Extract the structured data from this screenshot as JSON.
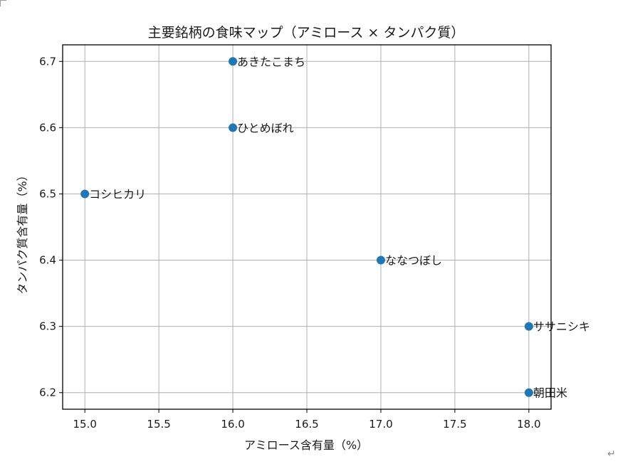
{
  "chart_data": {
    "type": "scatter",
    "title": "主要銘柄の食味マップ（アミロース × タンパク質）",
    "xlabel": "アミロース含有量（%）",
    "ylabel": "タンパク質含有量（%）",
    "xlim": [
      14.85,
      18.15
    ],
    "ylim": [
      6.175,
      6.725
    ],
    "xticks": [
      "15.0",
      "15.5",
      "16.0",
      "16.5",
      "17.0",
      "17.5",
      "18.0"
    ],
    "yticks": [
      "6.2",
      "6.3",
      "6.4",
      "6.5",
      "6.6",
      "6.7"
    ],
    "grid": true,
    "point_color": "#1f77b4",
    "points": [
      {
        "label": "コシヒカリ",
        "x": 15.0,
        "y": 6.5
      },
      {
        "label": "あきたこまち",
        "x": 16.0,
        "y": 6.7
      },
      {
        "label": "ひとめぼれ",
        "x": 16.0,
        "y": 6.6
      },
      {
        "label": "ななつぼし",
        "x": 17.0,
        "y": 6.4
      },
      {
        "label": "ササニシキ",
        "x": 18.0,
        "y": 6.3
      },
      {
        "label": "朝田米",
        "x": 18.0,
        "y": 6.2
      }
    ]
  },
  "page": {
    "return_mark": "↵"
  }
}
